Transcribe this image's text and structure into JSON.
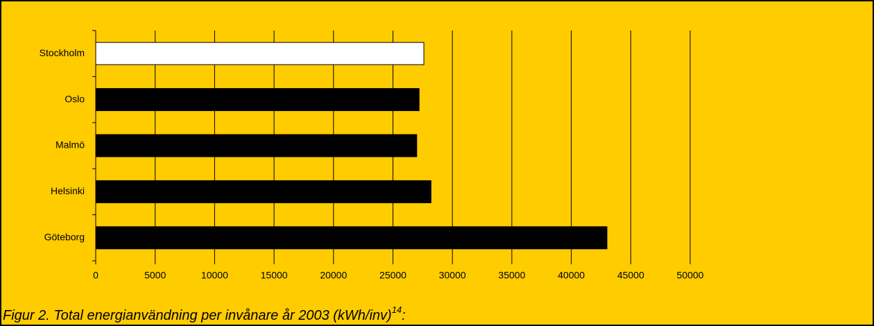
{
  "chart_data": {
    "type": "barh",
    "categories": [
      "Stockholm",
      "Oslo",
      "Malmö",
      "Helsinki",
      "Göteborg"
    ],
    "values": [
      27600,
      27200,
      27000,
      28200,
      43000
    ],
    "colors": [
      "#ffffff",
      "#000000",
      "#000000",
      "#000000",
      "#000000"
    ],
    "xlim": [
      0,
      50000
    ],
    "xticks": [
      0,
      5000,
      10000,
      15000,
      20000,
      25000,
      30000,
      35000,
      40000,
      45000,
      50000
    ],
    "grid": true,
    "caption": "Figur 2. Total energianvändning per invånare år 2003  (kWh/inv)",
    "caption_superscript": "14",
    "caption_suffix": ":"
  }
}
